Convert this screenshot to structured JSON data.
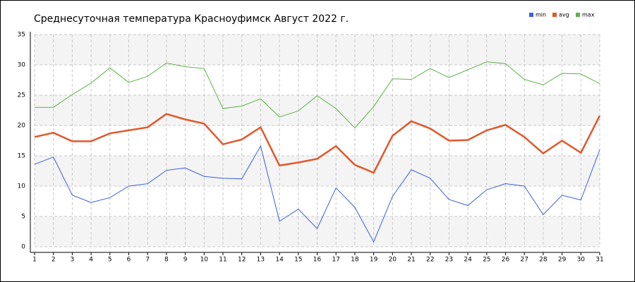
{
  "chart_data": {
    "type": "line",
    "title": "Среднесуточная температура Красноуфимск  Август 2022 г.",
    "x": [
      1,
      2,
      3,
      4,
      5,
      6,
      7,
      8,
      9,
      10,
      11,
      12,
      13,
      14,
      15,
      16,
      17,
      18,
      19,
      20,
      21,
      22,
      23,
      24,
      25,
      26,
      27,
      28,
      29,
      30,
      31
    ],
    "xlim": [
      1,
      31
    ],
    "series": [
      {
        "name": "min",
        "color": "#3c5fe0",
        "values": [
          13.6,
          14.8,
          8.5,
          7.3,
          8.1,
          10.0,
          10.4,
          12.6,
          13.0,
          11.6,
          11.3,
          11.2,
          16.6,
          4.2,
          6.2,
          3.0,
          9.7,
          6.5,
          0.8,
          8.3,
          12.7,
          11.3,
          7.8,
          6.8,
          9.4,
          10.4,
          10.0,
          5.3,
          8.5,
          7.7,
          16.0
        ]
      },
      {
        "name": "avg",
        "color": "#e0582a",
        "values": [
          18.1,
          18.8,
          17.4,
          17.4,
          18.7,
          19.2,
          19.7,
          21.9,
          21.0,
          20.3,
          16.9,
          17.7,
          19.7,
          13.4,
          13.9,
          14.5,
          16.6,
          13.5,
          12.2,
          18.3,
          20.7,
          19.5,
          17.5,
          17.6,
          19.2,
          20.1,
          18.1,
          15.4,
          17.5,
          15.5,
          21.6
        ]
      },
      {
        "name": "max",
        "color": "#5cb345",
        "values": [
          23.0,
          23.0,
          25.1,
          27.0,
          29.5,
          27.1,
          28.1,
          30.3,
          29.7,
          29.4,
          22.8,
          23.2,
          24.4,
          21.4,
          22.4,
          24.9,
          22.8,
          19.6,
          23.1,
          27.7,
          27.6,
          29.4,
          27.9,
          29.2,
          30.5,
          30.2,
          27.6,
          26.7,
          28.6,
          28.5,
          26.9
        ]
      }
    ],
    "ylim": [
      0,
      35
    ],
    "yticks": [
      0,
      5,
      10,
      15,
      20,
      25,
      30,
      35
    ],
    "grid": true,
    "legend": "top-right"
  }
}
